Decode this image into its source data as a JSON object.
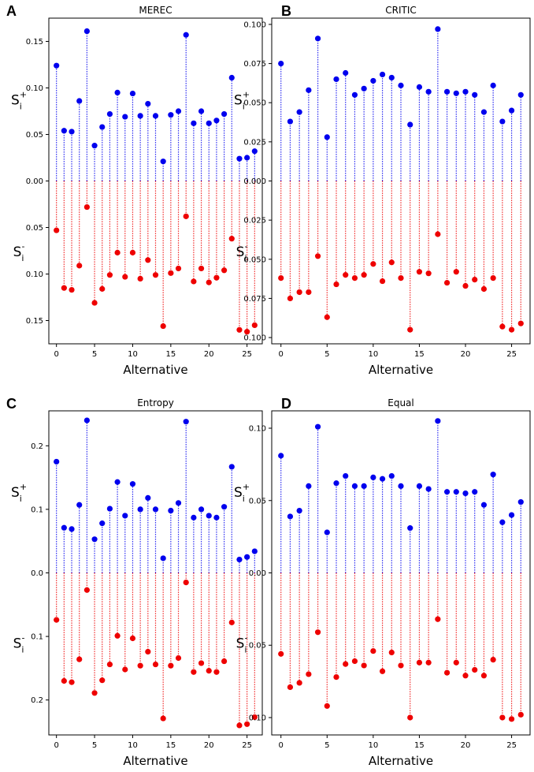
{
  "figure_labels": [
    "A",
    "B",
    "C",
    "D"
  ],
  "colors": {
    "positive": "#0000ee",
    "negative": "#ee0000",
    "axis": "#000000"
  },
  "ylabel_pos": {
    "main": "S",
    "sub": "i",
    "sup": "+"
  },
  "ylabel_neg": {
    "main": "S",
    "sub": "i",
    "sup": "-"
  },
  "chart_data": [
    {
      "type": "scatter",
      "title": "MEREC",
      "xlabel": "Alternative",
      "xlim": [
        -1,
        27
      ],
      "xticks": [
        0,
        5,
        10,
        15,
        20,
        25
      ],
      "ylim": [
        -0.175,
        0.175
      ],
      "yticks": [
        -0.15,
        -0.1,
        -0.05,
        0.0,
        0.05,
        0.1,
        0.15
      ],
      "ytick_labels": [
        "0.15",
        "0.10",
        "0.05",
        "0.00",
        "0.05",
        "0.10",
        "0.15"
      ],
      "x": [
        0,
        1,
        2,
        3,
        4,
        5,
        6,
        7,
        8,
        9,
        10,
        11,
        12,
        13,
        14,
        15,
        16,
        17,
        18,
        19,
        20,
        21,
        22,
        23,
        24,
        25,
        26
      ],
      "series": [
        {
          "name": "S_i+",
          "values": [
            0.124,
            0.054,
            0.053,
            0.086,
            0.161,
            0.038,
            0.058,
            0.072,
            0.095,
            0.069,
            0.094,
            0.07,
            0.083,
            0.07,
            0.021,
            0.071,
            0.075,
            0.157,
            0.062,
            0.075,
            0.062,
            0.065,
            0.072,
            0.111,
            0.024,
            0.025,
            0.032
          ]
        },
        {
          "name": "S_i-",
          "values": [
            0.053,
            0.115,
            0.117,
            0.091,
            0.028,
            0.131,
            0.116,
            0.101,
            0.077,
            0.103,
            0.077,
            0.105,
            0.085,
            0.101,
            0.156,
            0.099,
            0.094,
            0.038,
            0.108,
            0.094,
            0.109,
            0.104,
            0.096,
            0.062,
            0.16,
            0.162,
            0.155
          ]
        }
      ]
    },
    {
      "type": "scatter",
      "title": "CRITIC",
      "xlabel": "Alternative",
      "xlim": [
        -1,
        27
      ],
      "xticks": [
        0,
        5,
        10,
        15,
        20,
        25
      ],
      "ylim": [
        -0.104,
        0.104
      ],
      "yticks": [
        -0.1,
        -0.075,
        -0.05,
        -0.025,
        0.0,
        0.025,
        0.05,
        0.075,
        0.1
      ],
      "ytick_labels": [
        "0.100",
        "0.075",
        "0.050",
        "0.025",
        "0.000",
        "0.025",
        "0.050",
        "0.075",
        "0.100"
      ],
      "x": [
        0,
        1,
        2,
        3,
        4,
        5,
        6,
        7,
        8,
        9,
        10,
        11,
        12,
        13,
        14,
        15,
        16,
        17,
        18,
        19,
        20,
        21,
        22,
        23,
        24,
        25,
        26
      ],
      "series": [
        {
          "name": "S_i+",
          "values": [
            0.075,
            0.038,
            0.044,
            0.058,
            0.091,
            0.028,
            0.065,
            0.069,
            0.055,
            0.059,
            0.064,
            0.068,
            0.066,
            0.061,
            0.036,
            0.06,
            0.057,
            0.097,
            0.057,
            0.056,
            0.057,
            0.055,
            0.044,
            0.061,
            0.038,
            0.045,
            0.055
          ]
        },
        {
          "name": "S_i-",
          "values": [
            0.062,
            0.075,
            0.071,
            0.071,
            0.048,
            0.087,
            0.066,
            0.06,
            0.062,
            0.06,
            0.053,
            0.064,
            0.052,
            0.062,
            0.095,
            0.058,
            0.059,
            0.034,
            0.065,
            0.058,
            0.067,
            0.063,
            0.069,
            0.062,
            0.093,
            0.095,
            0.091
          ]
        }
      ]
    },
    {
      "type": "scatter",
      "title": "Entropy",
      "xlabel": "Alternative",
      "xlim": [
        -1,
        27
      ],
      "xticks": [
        0,
        5,
        10,
        15,
        20,
        25
      ],
      "ylim": [
        -0.255,
        0.255
      ],
      "yticks": [
        -0.2,
        -0.1,
        0.0,
        0.1,
        0.2
      ],
      "ytick_labels": [
        "0.2",
        "0.1",
        "0.0",
        "0.1",
        "0.2"
      ],
      "x": [
        0,
        1,
        2,
        3,
        4,
        5,
        6,
        7,
        8,
        9,
        10,
        11,
        12,
        13,
        14,
        15,
        16,
        17,
        18,
        19,
        20,
        21,
        22,
        23,
        24,
        25,
        26
      ],
      "series": [
        {
          "name": "S_i+",
          "values": [
            0.175,
            0.071,
            0.069,
            0.107,
            0.24,
            0.053,
            0.078,
            0.101,
            0.143,
            0.09,
            0.14,
            0.1,
            0.118,
            0.1,
            0.023,
            0.098,
            0.11,
            0.238,
            0.087,
            0.1,
            0.09,
            0.087,
            0.104,
            0.167,
            0.021,
            0.025,
            0.034
          ]
        },
        {
          "name": "S_i-",
          "values": [
            0.074,
            0.17,
            0.172,
            0.136,
            0.027,
            0.189,
            0.169,
            0.144,
            0.099,
            0.152,
            0.103,
            0.146,
            0.124,
            0.144,
            0.229,
            0.146,
            0.134,
            0.015,
            0.156,
            0.142,
            0.154,
            0.156,
            0.139,
            0.078,
            0.24,
            0.238,
            0.227
          ]
        }
      ]
    },
    {
      "type": "scatter",
      "title": "Equal",
      "xlabel": "Alternative",
      "xlim": [
        -1,
        27
      ],
      "xticks": [
        0,
        5,
        10,
        15,
        20,
        25
      ],
      "ylim": [
        -0.112,
        0.112
      ],
      "yticks": [
        -0.1,
        -0.05,
        0.0,
        0.05,
        0.1
      ],
      "ytick_labels": [
        "0.10",
        "0.05",
        "0.00",
        "0.05",
        "0.10"
      ],
      "x": [
        0,
        1,
        2,
        3,
        4,
        5,
        6,
        7,
        8,
        9,
        10,
        11,
        12,
        13,
        14,
        15,
        16,
        17,
        18,
        19,
        20,
        21,
        22,
        23,
        24,
        25,
        26
      ],
      "series": [
        {
          "name": "S_i+",
          "values": [
            0.081,
            0.039,
            0.043,
            0.06,
            0.101,
            0.028,
            0.062,
            0.067,
            0.06,
            0.06,
            0.066,
            0.065,
            0.067,
            0.06,
            0.031,
            0.06,
            0.058,
            0.105,
            0.056,
            0.056,
            0.055,
            0.056,
            0.047,
            0.068,
            0.035,
            0.04,
            0.049
          ]
        },
        {
          "name": "S_i-",
          "values": [
            0.056,
            0.079,
            0.076,
            0.07,
            0.041,
            0.092,
            0.072,
            0.063,
            0.061,
            0.064,
            0.054,
            0.068,
            0.055,
            0.064,
            0.1,
            0.062,
            0.062,
            0.032,
            0.069,
            0.062,
            0.071,
            0.067,
            0.071,
            0.06,
            0.1,
            0.101,
            0.098
          ]
        }
      ]
    }
  ]
}
